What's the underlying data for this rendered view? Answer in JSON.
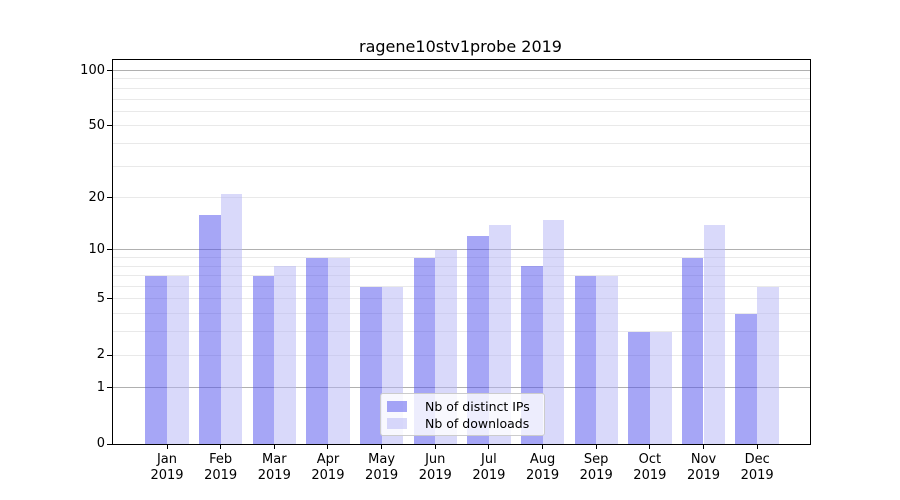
{
  "chart_data": {
    "type": "bar",
    "title": "ragene10stv1probe 2019",
    "x_months": [
      "Jan",
      "Feb",
      "Mar",
      "Apr",
      "May",
      "Jun",
      "Jul",
      "Aug",
      "Sep",
      "Oct",
      "Nov",
      "Dec"
    ],
    "x_year": "2019",
    "series": [
      {
        "name": "Nb of distinct IPs",
        "values": [
          7,
          16,
          7,
          9,
          6,
          9,
          12,
          8,
          7,
          3,
          9,
          4
        ]
      },
      {
        "name": "Nb of downloads",
        "values": [
          7,
          21,
          8,
          9,
          6,
          10,
          14,
          15,
          7,
          3,
          14,
          6
        ]
      }
    ],
    "y_scale": "log1p",
    "y_ticks": [
      0,
      1,
      2,
      5,
      10,
      20,
      50,
      100
    ],
    "y_grid_major": [
      1,
      10,
      100
    ],
    "y_grid_minor": [
      2,
      3,
      4,
      5,
      6,
      7,
      8,
      9,
      20,
      30,
      40,
      50,
      60,
      70,
      80,
      90
    ],
    "y_max": 114,
    "grid": "horizontal",
    "legend_position": "lower-center-inside"
  },
  "colors": {
    "ips_bar": "rgba(77,77,237,0.5)",
    "downloads_bar": "rgba(179,179,245,0.5)",
    "grid_major": "#b0b0b0",
    "grid_minor": "#e9e9e9",
    "axis": "#000000",
    "legend_border": "#cccccc",
    "background": "#ffffff"
  }
}
